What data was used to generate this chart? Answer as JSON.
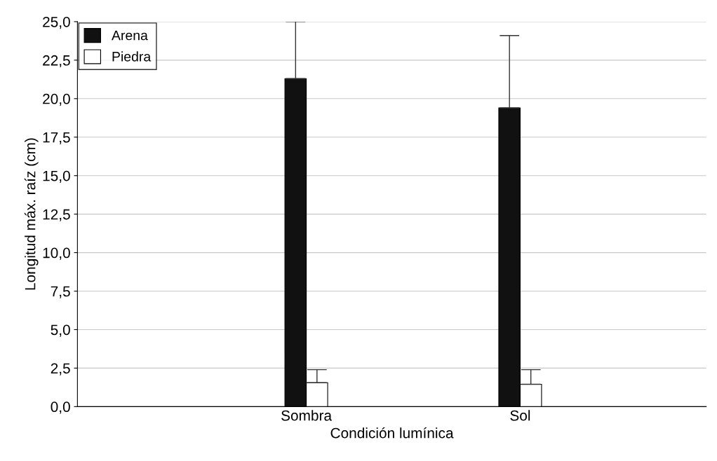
{
  "chart_data": {
    "type": "bar",
    "xlabel": "Condición lumínica",
    "ylabel": "Longitud máx. raíz (cm)",
    "categories": [
      "Sombra",
      "Sol"
    ],
    "series": [
      {
        "name": "Arena",
        "color": "#111111",
        "values": [
          21.3,
          19.4
        ],
        "errors": [
          [
            21.3,
            25.0
          ],
          [
            19.4,
            24.1
          ]
        ]
      },
      {
        "name": "Piedra",
        "color": "#ffffff",
        "values": [
          1.55,
          1.45
        ],
        "errors": [
          [
            1.55,
            2.4
          ],
          [
            1.45,
            2.4
          ]
        ]
      }
    ],
    "ylim": [
      0,
      25
    ],
    "yticks": [
      {
        "value": 0,
        "label": "0,0"
      },
      {
        "value": 2.5,
        "label": "2,5"
      },
      {
        "value": 5,
        "label": "5,0"
      },
      {
        "value": 7.5,
        "label": "7,5"
      },
      {
        "value": 10,
        "label": "10,0"
      },
      {
        "value": 12.5,
        "label": "12,5"
      },
      {
        "value": 15,
        "label": "15,0"
      },
      {
        "value": 17.5,
        "label": "17,5"
      },
      {
        "value": 20,
        "label": "20,0"
      },
      {
        "value": 22.5,
        "label": "22,5"
      },
      {
        "value": 25,
        "label": "25,0"
      }
    ],
    "grid": "y",
    "legend": "top left"
  }
}
